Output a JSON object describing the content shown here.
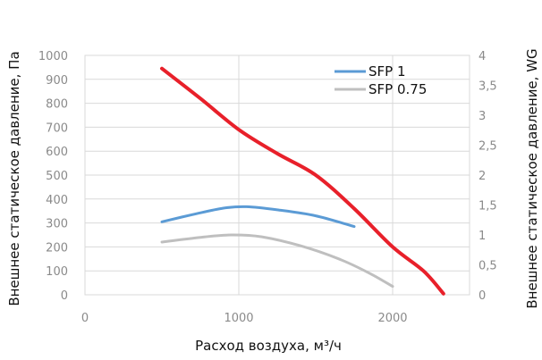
{
  "chart_data": {
    "type": "line",
    "xlabel": "Расход воздуха, м³/ч",
    "ylabel_left": "Внешнее статическое давление, Па",
    "ylabel_right": "Внешнее статическое давление, WG",
    "xlim": [
      0,
      2500
    ],
    "ylim_left": [
      0,
      1000
    ],
    "ylim_right": [
      0,
      4
    ],
    "x_ticks": [
      "0",
      "1000",
      "2000"
    ],
    "y_left_ticks": [
      "0",
      "100",
      "200",
      "300",
      "400",
      "500",
      "600",
      "700",
      "800",
      "900",
      "1000"
    ],
    "y_right_ticks": [
      "0",
      "0,5",
      "1",
      "1,5",
      "2",
      "2,5",
      "3",
      "3,5",
      "4"
    ],
    "grid": true,
    "legend_position": "top-right",
    "series": [
      {
        "name": "",
        "color": "#e8202a",
        "axis": "left",
        "x": [
          500,
          750,
          1000,
          1250,
          1500,
          1750,
          2000,
          2200,
          2330
        ],
        "y": [
          945,
          820,
          690,
          590,
          500,
          360,
          200,
          100,
          5
        ]
      },
      {
        "name": "SFP 1",
        "color": "#5b9bd5",
        "axis": "left",
        "x": [
          500,
          700,
          900,
          1050,
          1250,
          1500,
          1750
        ],
        "y": [
          305,
          335,
          362,
          368,
          355,
          330,
          285
        ]
      },
      {
        "name": "SFP 0.75",
        "color": "#bfbfbf",
        "axis": "left",
        "x": [
          500,
          750,
          950,
          1150,
          1400,
          1650,
          1850,
          2000
        ],
        "y": [
          220,
          240,
          250,
          242,
          205,
          150,
          90,
          35
        ]
      }
    ]
  }
}
